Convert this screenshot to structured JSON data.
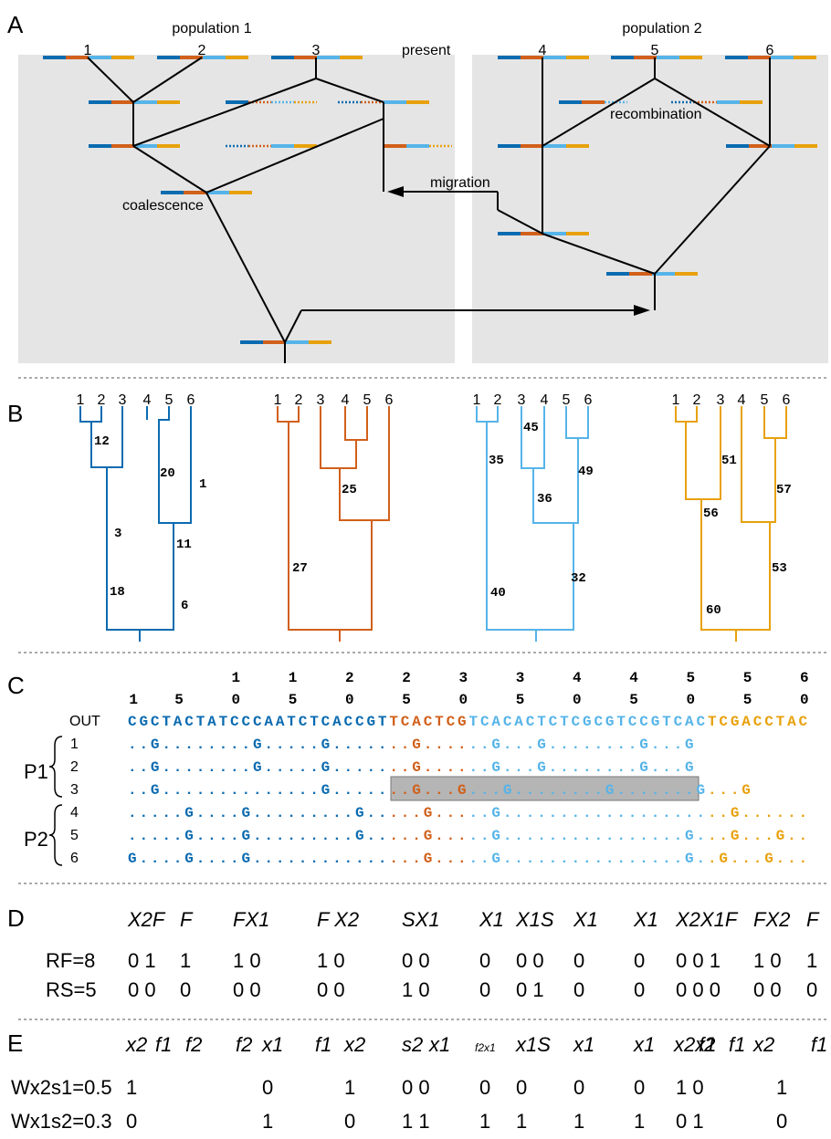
{
  "colors": {
    "dark_blue": "#0a6bb0",
    "orange": "#d1601a",
    "light_blue": "#56b4e9",
    "yellow": "#e8a10c",
    "panel_bg": "#e5e5e5"
  },
  "panel_letters": [
    "A",
    "B",
    "C",
    "D",
    "E"
  ],
  "A": {
    "pop1_label": "population 1",
    "pop2_label": "population 2",
    "present_label": "present",
    "recombination_label": "recombination",
    "migration_label": "migration",
    "coalescence_label": "coalescence",
    "sample_labels": [
      "1",
      "2",
      "3",
      "4",
      "5",
      "6"
    ]
  },
  "B": {
    "trees": [
      {
        "color": "dark_blue",
        "tips": [
          "1",
          "2",
          "3",
          "4",
          "5",
          "6"
        ],
        "branch_labels": [
          "12",
          "20",
          "1",
          "3",
          "11",
          "18",
          "6"
        ]
      },
      {
        "color": "orange",
        "tips": [
          "1",
          "2",
          "3",
          "4",
          "5",
          "6"
        ],
        "branch_labels": [
          "25",
          "27"
        ]
      },
      {
        "color": "light_blue",
        "tips": [
          "1",
          "2",
          "3",
          "4",
          "5",
          "6"
        ],
        "branch_labels": [
          "45",
          "35",
          "49",
          "36",
          "32",
          "40"
        ]
      },
      {
        "color": "yellow",
        "tips": [
          "1",
          "2",
          "3",
          "4",
          "5",
          "6"
        ],
        "branch_labels": [
          "51",
          "57",
          "56",
          "53",
          "60"
        ]
      }
    ]
  },
  "C": {
    "ruler_top": [
      "1",
      "1",
      "2",
      "2",
      "3",
      "3",
      "4",
      "4",
      "5",
      "5",
      "6"
    ],
    "ruler_bottom": [
      "1",
      "5",
      "0",
      "5",
      "0",
      "5",
      "0",
      "5",
      "0",
      "5",
      "0",
      "5",
      "0"
    ],
    "outgroup_label": "OUT",
    "outgroup_seq": "CGCTACTATCCCAATCTCACCGTTCACTCGTCACACTCTCGCGTCCGTCACTCGACCTAC",
    "segment_breaks": [
      23,
      30,
      51
    ],
    "p1_label": "P1",
    "p2_label": "P2",
    "rows": [
      {
        "label": "1",
        "seq": "..G........G.....G.......G......G...G........G...G"
      },
      {
        "label": "2",
        "seq": "..G........G.....G.......G......G...G........G...G"
      },
      {
        "label": "3",
        "seq": "..G..............G.......G...G...G........G.......G...G"
      },
      {
        "label": "4",
        "seq": ".....G....G.........G.....G.....G....................G......"
      },
      {
        "label": "5",
        "seq": ".....G....G.........G.....G.....G................G...G...G.."
      },
      {
        "label": "6",
        "seq": "G....G....G...............G.....G................G..G...G..."
      }
    ]
  },
  "D": {
    "headers": [
      "X2F",
      "F",
      "FX1",
      "F X2",
      "SX1",
      "X1",
      "X1S",
      "X1",
      "X1",
      "X2X1F",
      "FX2",
      "F"
    ],
    "rows": [
      {
        "label": "RF=8",
        "values": [
          "0 1",
          "1",
          "1 0",
          "1 0",
          "0 0",
          "0",
          "0 0",
          "0",
          "0",
          "0 0 1",
          "1 0",
          "1"
        ]
      },
      {
        "label": "RS=5",
        "values": [
          "0 0",
          "0",
          "0 0",
          "0 0",
          "1 0",
          "0",
          "0 1",
          "0",
          "0",
          "0 0 0",
          "0 0",
          "0"
        ]
      }
    ]
  },
  "E": {
    "headers": [
      "x2",
      "f1",
      "f2",
      "f2",
      "x1",
      "f1",
      "x2",
      "s2",
      "x1",
      "f2x1",
      "x1S",
      "x1",
      "x1",
      "x2x1",
      "f2",
      "f1",
      "x2",
      "f1"
    ],
    "rows": [
      {
        "label": "Wx2s1=0.5",
        "values": [
          "1",
          "0",
          "1",
          "0 0",
          "0",
          "0",
          "0",
          "0",
          "1 0",
          "1"
        ]
      },
      {
        "label": "Wx1s2=0.3",
        "values": [
          "0",
          "1",
          "0",
          "1 1",
          "1",
          "1",
          "1",
          "1",
          "0 1",
          "0"
        ]
      }
    ]
  }
}
